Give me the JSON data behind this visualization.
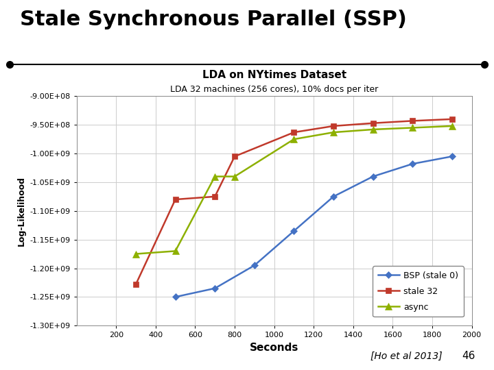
{
  "title": "Stale Synchronous Parallel (SSP)",
  "chart_title": "LDA on NYtimes Dataset",
  "chart_subtitle": "LDA 32 machines (256 cores), 10% docs per iter",
  "xlabel": "Seconds",
  "ylabel": "Log-Likelihood",
  "citation": "[Ho et al 2013]",
  "slide_number": "46",
  "background_color": "#ffffff",
  "bsp_color": "#4472c4",
  "stale32_color": "#c0392b",
  "async_color": "#8db000",
  "xlim": [
    0,
    2000
  ],
  "ylim": [
    -1300000000.0,
    -900000000.0
  ],
  "xticks": [
    0,
    200,
    400,
    600,
    800,
    1000,
    1200,
    1400,
    1600,
    1800,
    2000
  ],
  "yticks": [
    -1300000000.0,
    -1250000000.0,
    -1200000000.0,
    -1150000000.0,
    -1100000000.0,
    -1050000000.0,
    -1000000000.0,
    -950000000.0,
    -900000000.0
  ],
  "bsp_x": [
    500,
    700,
    900,
    1100,
    1300,
    1500,
    1700,
    1900
  ],
  "bsp_y": [
    -1250000000.0,
    -1235000000.0,
    -1195000000.0,
    -1135000000.0,
    -1075000000.0,
    -1040000000.0,
    -1018000000.0,
    -1005000000.0
  ],
  "stale32_x": [
    300,
    500,
    700,
    800,
    1100,
    1300,
    1500,
    1700,
    1900
  ],
  "stale32_y": [
    -1228000000.0,
    -1080000000.0,
    -1075000000.0,
    -1005000000.0,
    -963000000.0,
    -952000000.0,
    -947000000.0,
    -943000000.0,
    -940000000.0
  ],
  "async_x": [
    300,
    500,
    700,
    800,
    1100,
    1300,
    1500,
    1700,
    1900
  ],
  "async_y": [
    -1175000000.0,
    -1170000000.0,
    -1040000000.0,
    -1040000000.0,
    -975000000.0,
    -963000000.0,
    -958000000.0,
    -955000000.0,
    -952000000.0
  ],
  "title_fontsize": 22,
  "chart_title_fontsize": 11,
  "chart_subtitle_fontsize": 9,
  "xlabel_fontsize": 11,
  "ylabel_fontsize": 9,
  "tick_fontsize": 8,
  "legend_fontsize": 9,
  "citation_fontsize": 10,
  "slide_num_fontsize": 11
}
